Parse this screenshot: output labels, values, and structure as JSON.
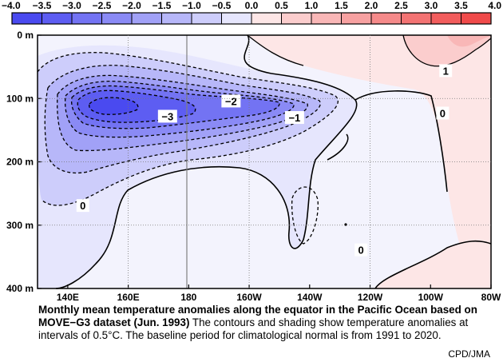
{
  "chart_data": {
    "type": "heatmap",
    "colorbar": {
      "levels": [
        -4.0,
        -3.5,
        -3.0,
        -2.5,
        -2.0,
        -1.5,
        -1.0,
        -0.5,
        0.0,
        0.5,
        1.0,
        1.5,
        2.0,
        2.5,
        3.0,
        3.5,
        4.0
      ],
      "tick_labels": [
        "−4.0",
        "−3.5",
        "−3.0",
        "−2.5",
        "−2.0",
        "−1.5",
        "−1.0",
        "−0.5",
        "0.0",
        "0.5",
        "1.0",
        "1.5",
        "2.0",
        "2.5",
        "3.0",
        "3.5",
        "4.0"
      ],
      "colors": [
        "#4a4af0",
        "#5d5df2",
        "#7373f3",
        "#8a8af5",
        "#a1a1f7",
        "#b7b7f9",
        "#cdcdfb",
        "#e6e6fd",
        "#fde6e6",
        "#fbcdcd",
        "#f9b7b7",
        "#f7a1a1",
        "#f58a8a",
        "#f37373",
        "#f25d5d",
        "#f04a4a"
      ]
    },
    "x_axis": {
      "ticks": [
        140,
        160,
        180,
        200,
        220,
        240,
        260,
        280
      ],
      "tick_labels": [
        "140E",
        "160E",
        "180",
        "160W",
        "140W",
        "120W",
        "100W",
        "80W"
      ],
      "range": [
        130,
        280
      ]
    },
    "y_axis": {
      "ticks": [
        0,
        100,
        200,
        300,
        400
      ],
      "tick_labels": [
        "0 m",
        "100 m",
        "200 m",
        "300 m",
        "400 m"
      ],
      "range": [
        0,
        400
      ]
    },
    "contour_interval": 0.5,
    "contour_labels": [
      {
        "text": "−3",
        "lon": 173,
        "depth": 128
      },
      {
        "text": "−2",
        "lon": 194,
        "depth": 104
      },
      {
        "text": "−1",
        "lon": 215,
        "depth": 130
      },
      {
        "text": "0",
        "lon": 145,
        "depth": 269
      },
      {
        "text": "0",
        "lon": 264,
        "depth": 123
      },
      {
        "text": "0",
        "lon": 237,
        "depth": 339
      },
      {
        "text": "1",
        "lon": 265,
        "depth": 56
      }
    ],
    "anomaly_field": [
      {
        "lon": 158,
        "depth": 118,
        "min_value": -3.8
      },
      {
        "lon": 195,
        "depth": 120,
        "min_value": -2.5
      },
      {
        "lon": 208,
        "depth": 113,
        "min_value": -2.6
      },
      {
        "lon": 270,
        "depth": 60,
        "max_value": 1.5
      }
    ]
  },
  "caption": {
    "title": "Monthly mean temperature anomalies along the equator in the Pacific Ocean based on MOVE−G3 dataset (Jun. 1993)",
    "body": " The contours and shading show temperature anomalies at intervals of 0.5°C.  The baseline period for climatological normal is from 1991 to 2020.",
    "credit": "CPD/JMA"
  }
}
